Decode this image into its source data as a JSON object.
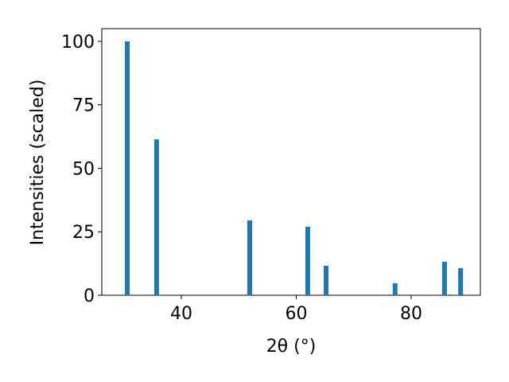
{
  "chart_data": {
    "type": "bar",
    "x": [
      30.6,
      35.7,
      51.9,
      62.0,
      65.2,
      77.2,
      85.8,
      88.6
    ],
    "values": [
      100,
      61.4,
      29.5,
      27,
      11.6,
      4.7,
      13.2,
      10.7
    ],
    "color": "#1f77b4",
    "xlabel": "2θ (°)",
    "ylabel": "Intensities (scaled)",
    "xlim": [
      26.16,
      92.04
    ],
    "xticks": [
      40,
      60,
      80
    ],
    "ylim": [
      0,
      105
    ],
    "yticks": [
      0,
      25,
      50,
      75,
      100
    ],
    "grid": false
  }
}
